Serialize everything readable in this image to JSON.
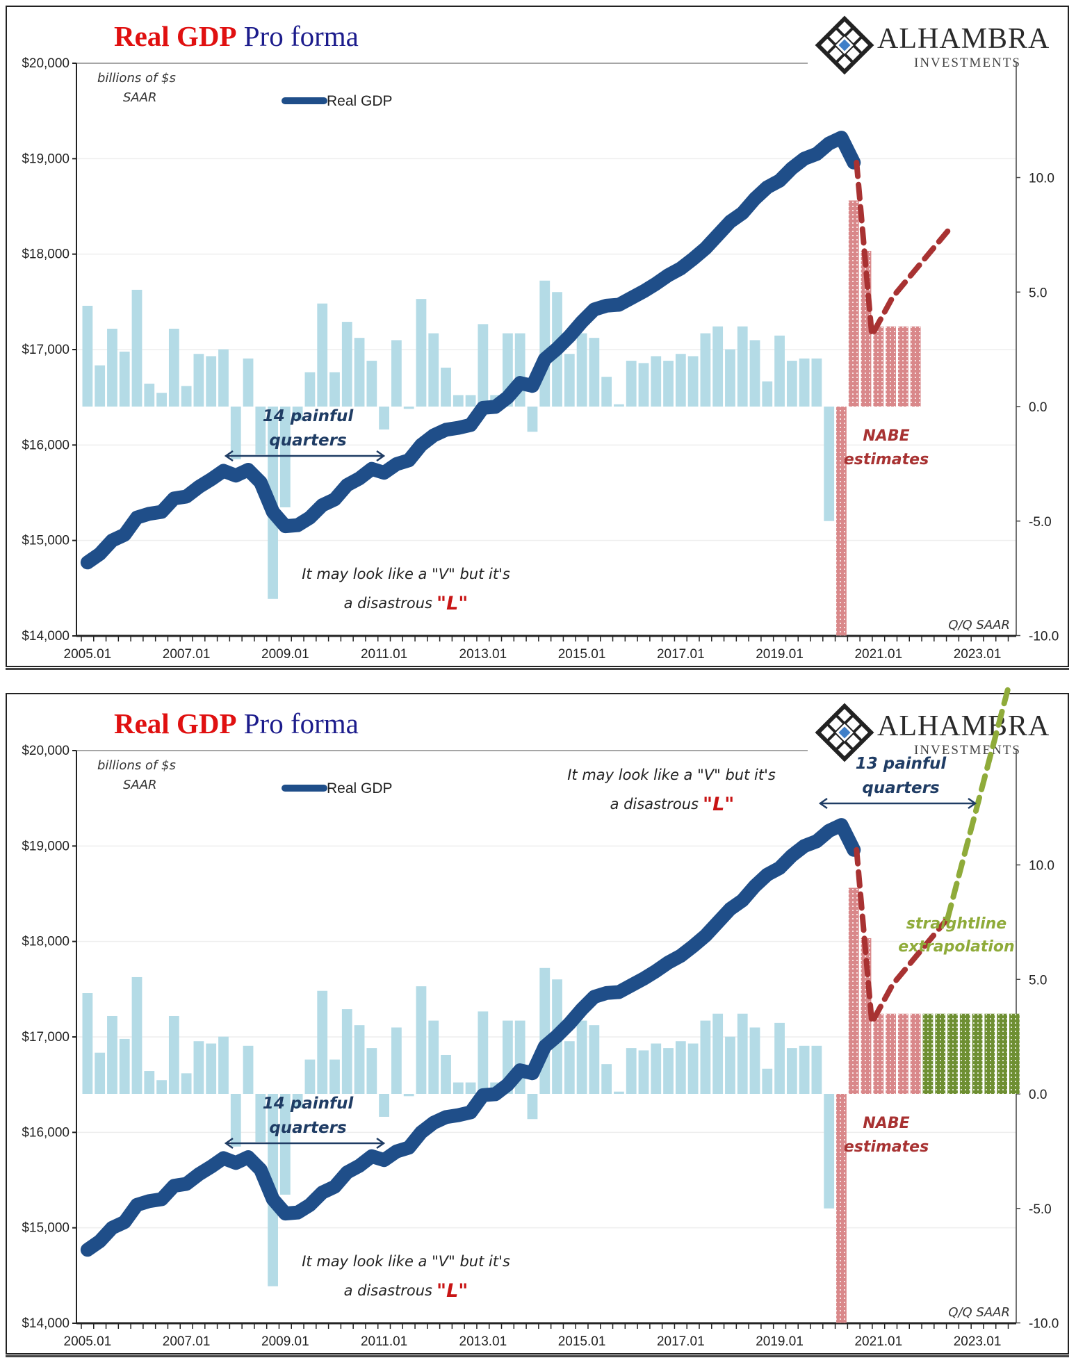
{
  "chart_data": [
    {
      "type": "bar+line",
      "title_part1": "Real GDP",
      "title_part2": "Pro forma",
      "brand": "ALHAMBRA",
      "brand_sub": "INVESTMENTS",
      "units_note_line1": "billions of $s",
      "units_note_line2": "SAAR",
      "legend": [
        {
          "label": "Real GDP",
          "color": "#1f4e89"
        }
      ],
      "left_axis": {
        "ticks": [
          "$14,000",
          "$15,000",
          "$16,000",
          "$17,000",
          "$18,000",
          "$19,000",
          "$20,000"
        ],
        "range": [
          14000,
          20000
        ]
      },
      "right_axis": {
        "ticks": [
          "-10.0",
          "-5.0",
          "0.0",
          "5.0",
          "10.0"
        ],
        "range": [
          -10,
          15
        ],
        "label": "Q/Q SAAR"
      },
      "x_ticks": [
        "2005.01",
        "2007.01",
        "2009.01",
        "2011.01",
        "2013.01",
        "2015.01",
        "2017.01",
        "2019.01",
        "2021.01",
        "2023.01"
      ],
      "x_range_quarters": [
        "2005.01",
        "2023.04"
      ],
      "colors": {
        "gdp_line": "#1f4e89",
        "growth_bars": "#b4dbe6",
        "nabe_bars": "#d9888a",
        "nabe_line": "#a83232",
        "extrap": "#6e8f32",
        "extrap_line": "#8fab3a",
        "annotation": "#1f3c64",
        "l_red": "#c81414"
      },
      "real_gdp": [
        14770,
        14860,
        15000,
        15060,
        15240,
        15280,
        15300,
        15440,
        15460,
        15560,
        15640,
        15730,
        15680,
        15740,
        15610,
        15300,
        15150,
        15160,
        15240,
        15370,
        15430,
        15580,
        15650,
        15750,
        15710,
        15800,
        15840,
        16000,
        16100,
        16160,
        16180,
        16210,
        16390,
        16400,
        16500,
        16650,
        16620,
        16900,
        17010,
        17140,
        17290,
        17420,
        17460,
        17470,
        17540,
        17610,
        17690,
        17780,
        17850,
        17950,
        18060,
        18200,
        18340,
        18430,
        18580,
        18700,
        18770,
        18900,
        19000,
        19050,
        19160,
        19220,
        18960
      ],
      "growth_qq_saar": [
        4.4,
        1.8,
        3.4,
        2.4,
        5.1,
        1.0,
        0.6,
        3.4,
        0.9,
        2.3,
        2.2,
        2.5,
        -2.3,
        2.1,
        -2.1,
        -8.4,
        -4.4,
        -0.6,
        1.5,
        4.5,
        1.5,
        3.7,
        3.0,
        2.0,
        -1.0,
        2.9,
        -0.1,
        4.7,
        3.2,
        1.7,
        0.5,
        0.5,
        3.6,
        0.5,
        3.2,
        3.2,
        -1.1,
        5.5,
        5.0,
        2.3,
        3.2,
        3.0,
        1.3,
        0.1,
        2.0,
        1.9,
        2.2,
        2.0,
        2.3,
        2.2,
        3.2,
        3.5,
        2.5,
        3.5,
        2.9,
        1.1,
        3.1,
        2.0,
        2.1,
        2.1,
        -5.0
      ],
      "nabe_estimates": [
        -10.0,
        9.0,
        6.8,
        3.5,
        3.5,
        3.5,
        3.5
      ],
      "extrapolation_bars": [
        3.5,
        3.5,
        3.5,
        3.5,
        3.5,
        3.5,
        3.5,
        3.5
      ],
      "nabe_path_gdp": [
        18960,
        17150,
        17550,
        17900,
        18240
      ],
      "annotations": {
        "gfc_span_line1": "14 painful",
        "gfc_span_line2": "quarters",
        "v_note_line1": "It may look like a \"V\" but it's",
        "v_note_line2": "a disastrous",
        "v_note_L": "\"L\"",
        "nabe_line1": "NABE",
        "nabe_line2": "estimates",
        "covid_span_line1": "13 painful",
        "covid_span_line2": "quarters",
        "extrap_line1": "straightline",
        "extrap_line2": "extrapolation"
      }
    }
  ]
}
